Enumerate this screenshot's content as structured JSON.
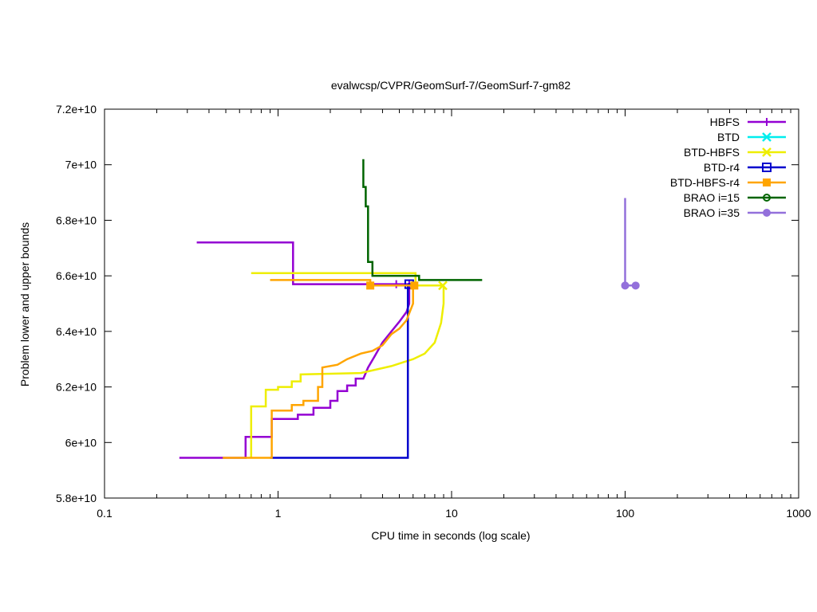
{
  "chart_data": {
    "type": "line",
    "title": "evalwcsp/CVPR/GeomSurf-7/GeomSurf-7-gm82",
    "xlabel": "CPU time in seconds (log scale)",
    "ylabel": "Problem lower and upper bounds",
    "x_scale": "log",
    "xlim": [
      0.1,
      1000
    ],
    "ylim": [
      58000000000,
      72000000000
    ],
    "x_ticks": [
      {
        "value": 0.1,
        "label": "0.1"
      },
      {
        "value": 1,
        "label": "1"
      },
      {
        "value": 10,
        "label": "10"
      },
      {
        "value": 100,
        "label": "100"
      },
      {
        "value": 1000,
        "label": "1000"
      }
    ],
    "y_ticks": [
      {
        "value": 58000000000,
        "label": "5.8e+10"
      },
      {
        "value": 60000000000,
        "label": "6e+10"
      },
      {
        "value": 62000000000,
        "label": "6.2e+10"
      },
      {
        "value": 64000000000,
        "label": "6.4e+10"
      },
      {
        "value": 66000000000,
        "label": "6.6e+10"
      },
      {
        "value": 68000000000,
        "label": "6.8e+10"
      },
      {
        "value": 70000000000,
        "label": "7e+10"
      },
      {
        "value": 72000000000,
        "label": "7.2e+10"
      }
    ],
    "grid": false,
    "legend_position": "top-right",
    "series": [
      {
        "name": "HBFS",
        "color": "#9400d3",
        "marker": "plus",
        "upper": [
          [
            0.34,
            67200000000
          ],
          [
            1.22,
            67200000000
          ],
          [
            1.22,
            65700000000
          ],
          [
            5.7,
            65700000000
          ]
        ],
        "lower": [
          [
            0.27,
            59450000000
          ],
          [
            0.65,
            59450000000
          ],
          [
            0.65,
            60200000000
          ],
          [
            0.92,
            60200000000
          ],
          [
            0.92,
            60850000000
          ],
          [
            1.3,
            60850000000
          ],
          [
            1.3,
            61000000000
          ],
          [
            1.6,
            61000000000
          ],
          [
            1.6,
            61250000000
          ],
          [
            2.0,
            61250000000
          ],
          [
            2.0,
            61500000000
          ],
          [
            2.2,
            61500000000
          ],
          [
            2.2,
            61850000000
          ],
          [
            2.5,
            61850000000
          ],
          [
            2.5,
            62050000000
          ],
          [
            2.8,
            62050000000
          ],
          [
            2.8,
            62300000000
          ],
          [
            3.1,
            62300000000
          ],
          [
            3.3,
            62700000000
          ],
          [
            3.6,
            63100000000
          ],
          [
            4.0,
            63600000000
          ],
          [
            4.5,
            64000000000
          ],
          [
            5.0,
            64350000000
          ],
          [
            5.5,
            64700000000
          ],
          [
            5.7,
            65000000000
          ],
          [
            5.7,
            65700000000
          ]
        ],
        "markers": [
          [
            4.8,
            65700000000
          ],
          [
            5.7,
            65700000000
          ]
        ]
      },
      {
        "name": "BTD",
        "color": "#00eeee",
        "marker": "cross",
        "upper": [],
        "lower": [],
        "markers": []
      },
      {
        "name": "BTD-HBFS",
        "color": "#eeee00",
        "marker": "cross",
        "upper": [
          [
            0.7,
            66100000000
          ],
          [
            6.2,
            66100000000
          ],
          [
            6.2,
            65650000000
          ],
          [
            9.0,
            65650000000
          ]
        ],
        "lower": [
          [
            0.7,
            59450000000
          ],
          [
            0.7,
            61300000000
          ],
          [
            0.85,
            61300000000
          ],
          [
            0.85,
            61900000000
          ],
          [
            1.0,
            61900000000
          ],
          [
            1.0,
            62000000000
          ],
          [
            1.2,
            62000000000
          ],
          [
            1.2,
            62200000000
          ],
          [
            1.35,
            62200000000
          ],
          [
            1.35,
            62450000000
          ],
          [
            3.0,
            62500000000
          ],
          [
            4.5,
            62750000000
          ],
          [
            6.0,
            63000000000
          ],
          [
            7.0,
            63200000000
          ],
          [
            8.0,
            63600000000
          ],
          [
            8.7,
            64300000000
          ],
          [
            9.0,
            65000000000
          ],
          [
            9.0,
            65650000000
          ]
        ],
        "markers": [
          [
            8.9,
            65650000000
          ]
        ]
      },
      {
        "name": "BTD-r4",
        "color": "#0000cd",
        "marker": "square",
        "upper": [
          [
            5.6,
            65700000000
          ],
          [
            5.9,
            65700000000
          ]
        ],
        "lower": [
          [
            0.9,
            59450000000
          ],
          [
            5.6,
            59450000000
          ],
          [
            5.6,
            65700000000
          ]
        ],
        "markers": [
          [
            5.7,
            65700000000
          ]
        ]
      },
      {
        "name": "BTD-HBFS-r4",
        "color": "#ffa500",
        "marker": "filled-square",
        "upper": [
          [
            0.9,
            65850000000
          ],
          [
            3.4,
            65850000000
          ],
          [
            3.4,
            65650000000
          ],
          [
            6.1,
            65650000000
          ]
        ],
        "lower": [
          [
            0.48,
            59450000000
          ],
          [
            0.92,
            59450000000
          ],
          [
            0.92,
            61150000000
          ],
          [
            1.2,
            61150000000
          ],
          [
            1.2,
            61350000000
          ],
          [
            1.4,
            61350000000
          ],
          [
            1.4,
            61500000000
          ],
          [
            1.7,
            61500000000
          ],
          [
            1.7,
            62000000000
          ],
          [
            1.8,
            62000000000
          ],
          [
            1.8,
            62700000000
          ],
          [
            2.2,
            62800000000
          ],
          [
            2.5,
            63000000000
          ],
          [
            3.0,
            63200000000
          ],
          [
            3.5,
            63300000000
          ],
          [
            4.0,
            63500000000
          ],
          [
            4.5,
            63900000000
          ],
          [
            5.0,
            64100000000
          ],
          [
            5.5,
            64400000000
          ],
          [
            6.0,
            65000000000
          ],
          [
            6.0,
            65650000000
          ]
        ],
        "markers": [
          [
            3.4,
            65650000000
          ],
          [
            6.1,
            65650000000
          ]
        ]
      },
      {
        "name": "BRAO i=15",
        "color": "#006400",
        "marker": "circle",
        "upper": [
          [
            3.1,
            70200000000
          ],
          [
            3.1,
            69200000000
          ],
          [
            3.2,
            69200000000
          ],
          [
            3.2,
            68500000000
          ],
          [
            3.3,
            68500000000
          ],
          [
            3.3,
            66500000000
          ],
          [
            3.5,
            66500000000
          ],
          [
            3.5,
            66000000000
          ],
          [
            6.5,
            66000000000
          ],
          [
            6.5,
            65850000000
          ],
          [
            15.0,
            65850000000
          ]
        ],
        "lower": [],
        "markers": []
      },
      {
        "name": "BRAO i=35",
        "color": "#9370db",
        "marker": "filled-circle",
        "upper": [
          [
            100,
            68800000000
          ],
          [
            100,
            65650000000
          ],
          [
            115,
            65650000000
          ]
        ],
        "lower": [],
        "markers": [
          [
            100,
            65650000000
          ],
          [
            115,
            65650000000
          ]
        ]
      }
    ]
  }
}
